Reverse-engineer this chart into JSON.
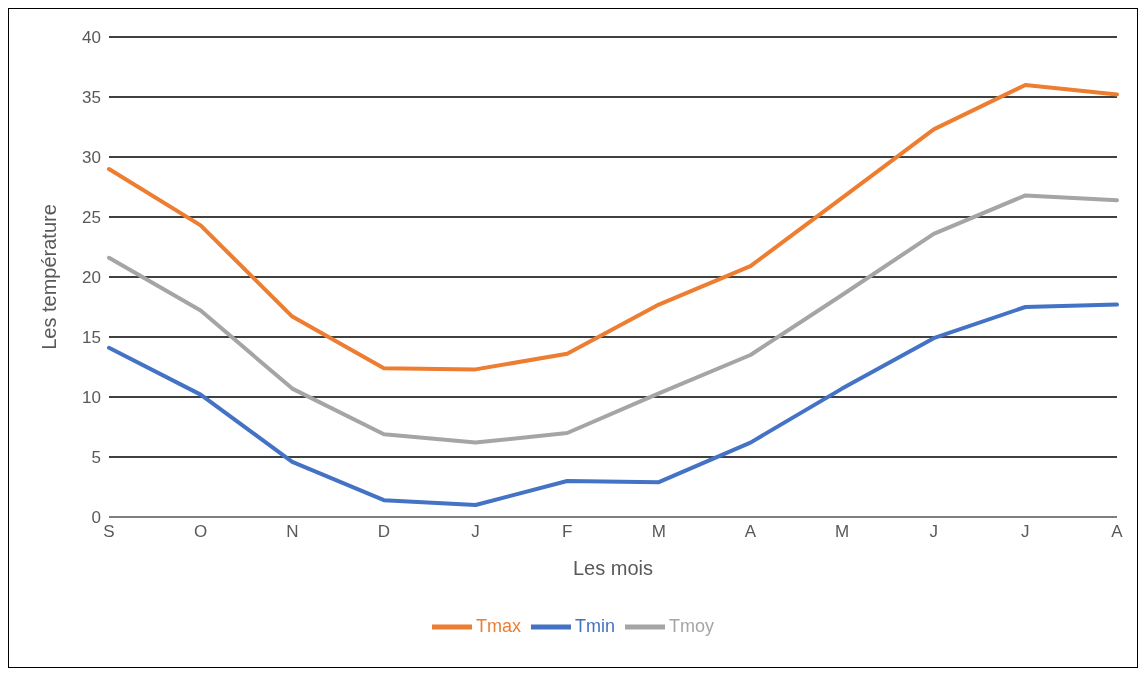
{
  "chart_data": {
    "type": "line",
    "xlabel": "Les mois",
    "ylabel": "Les température",
    "categories": [
      "S",
      "O",
      "N",
      "D",
      "J",
      "F",
      "M",
      "A",
      "M",
      "J",
      "J",
      "A"
    ],
    "series": [
      {
        "name": "Tmin",
        "color": "#4472c4",
        "values": [
          14.1,
          10.2,
          4.6,
          1.4,
          1.0,
          3.0,
          2.9,
          6.2,
          10.7,
          14.9,
          17.5,
          17.7
        ]
      },
      {
        "name": "Tmax",
        "color": "#ed7d31",
        "values": [
          29.0,
          24.3,
          16.7,
          12.4,
          12.3,
          13.6,
          17.7,
          20.9,
          26.6,
          32.3,
          36.0,
          35.2
        ]
      },
      {
        "name": "Tmoy",
        "color": "#a5a5a5",
        "values": [
          21.6,
          17.2,
          10.7,
          6.9,
          6.2,
          7.0,
          10.3,
          13.5,
          18.5,
          23.6,
          26.8,
          26.4
        ]
      }
    ],
    "ylim": [
      0,
      40
    ],
    "yticks": [
      0,
      5,
      10,
      15,
      20,
      25,
      30,
      35,
      40
    ],
    "grid": "y",
    "legend": "bottom",
    "marker": "none",
    "line_style": "solid"
  }
}
